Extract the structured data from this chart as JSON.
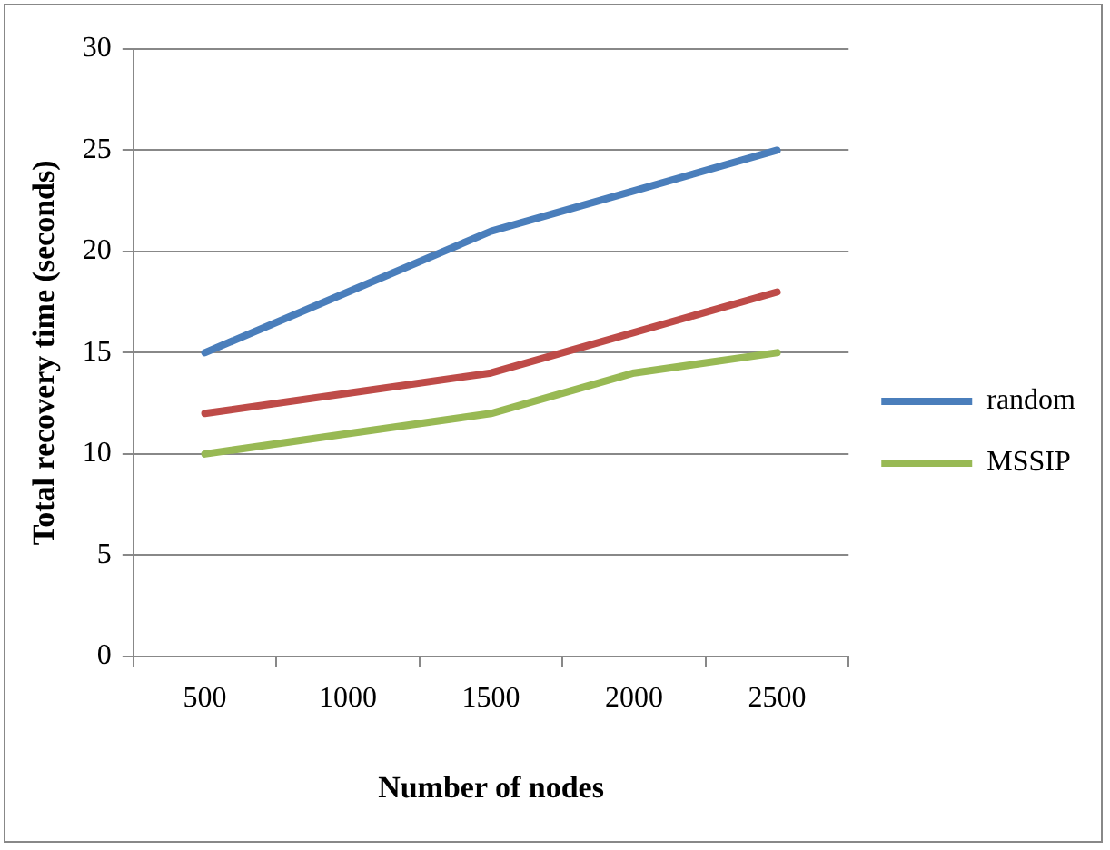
{
  "chart_data": {
    "type": "line",
    "xlabel": "Number of nodes",
    "ylabel": "Total recovery time (seconds)",
    "categories": [
      "500",
      "1000",
      "1500",
      "2000",
      "2500"
    ],
    "series": [
      {
        "name": "random",
        "color": "#4a7ebb",
        "values": [
          15,
          18,
          21,
          23,
          25
        ]
      },
      {
        "color": "#be4b48",
        "values": [
          12,
          13,
          14,
          16,
          18
        ]
      },
      {
        "name": "MSSIP",
        "color": "#98b954",
        "values": [
          10,
          11,
          12,
          14,
          15
        ]
      }
    ],
    "ylim": [
      0,
      30
    ],
    "yticks": [
      0,
      5,
      10,
      15,
      20,
      25,
      30
    ],
    "grid": "y",
    "legend": "right",
    "marker": "none"
  }
}
